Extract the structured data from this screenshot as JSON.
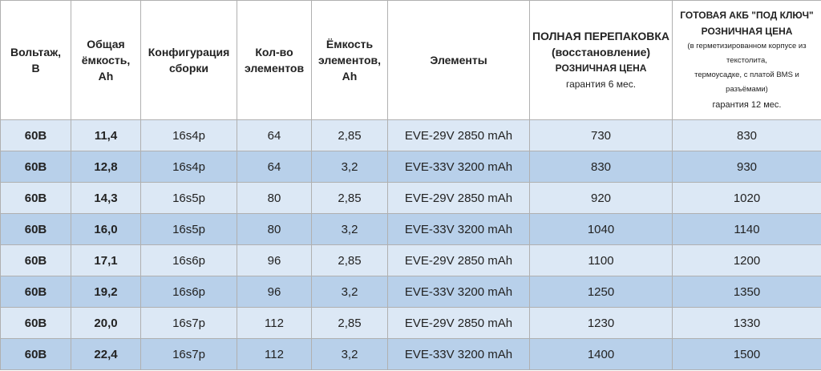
{
  "table": {
    "header": [
      [
        "Вольтаж,",
        "В"
      ],
      [
        "Общая",
        "ёмкость,",
        "Ah"
      ],
      [
        "Конфигурация",
        "сборки"
      ],
      [
        "Кол-во",
        "элементов"
      ],
      [
        "Ёмкость",
        "элементов,",
        "Ah"
      ],
      [
        "Элементы"
      ],
      [
        "ПОЛНАЯ ПЕРЕПАКОВКА",
        "(восстановление)",
        "РОЗНИЧНАЯ ЦЕНА",
        "гарантия 6 мес."
      ],
      [
        "ГОТОВАЯ АКБ \"ПОД КЛЮЧ\"",
        "РОЗНИЧНАЯ ЦЕНА",
        "(в герметизированном корпусе из текстолита,",
        "термоусадке, с платой BMS и разъёмами)",
        "гарантия 12 мес."
      ]
    ],
    "rows": [
      [
        "60В",
        "11,4",
        "16s4p",
        "64",
        "2,85",
        "EVE-29V 2850 mAh",
        "730",
        "830"
      ],
      [
        "60В",
        "12,8",
        "16s4p",
        "64",
        "3,2",
        "EVE-33V 3200 mAh",
        "830",
        "930"
      ],
      [
        "60В",
        "14,3",
        "16s5p",
        "80",
        "2,85",
        "EVE-29V 2850 mAh",
        "920",
        "1020"
      ],
      [
        "60В",
        "16,0",
        "16s5p",
        "80",
        "3,2",
        "EVE-33V 3200 mAh",
        "1040",
        "1140"
      ],
      [
        "60В",
        "17,1",
        "16s6p",
        "96",
        "2,85",
        "EVE-29V 2850 mAh",
        "1100",
        "1200"
      ],
      [
        "60В",
        "19,2",
        "16s6p",
        "96",
        "3,2",
        "EVE-33V 3200 mAh",
        "1250",
        "1350"
      ],
      [
        "60В",
        "20,0",
        "16s7p",
        "112",
        "2,85",
        "EVE-29V 2850 mAh",
        "1230",
        "1330"
      ],
      [
        "60В",
        "22,4",
        "16s7p",
        "112",
        "3,2",
        "EVE-33V 3200 mAh",
        "1400",
        "1500"
      ]
    ]
  }
}
